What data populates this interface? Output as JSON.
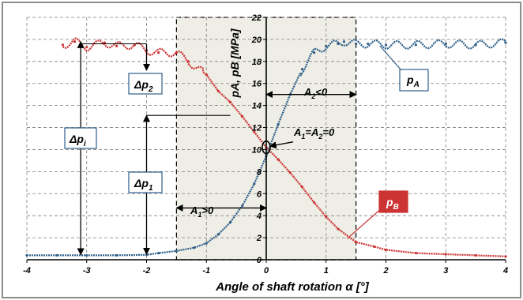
{
  "colors": {
    "pA": "#2e5f8a",
    "pB": "#cc3333",
    "shade": "#efeee6",
    "grid": "#7f7f7f",
    "border": "#7f7f7f"
  },
  "chart_data": {
    "type": "scatter",
    "title": "",
    "xlabel": "Angle of shaft rotation   α  [°]",
    "ylabel": "pA, pB  [MPa]",
    "xlim": [
      -4,
      4
    ],
    "ylim": [
      0,
      22
    ],
    "x_ticks": [
      -4,
      -3,
      -2,
      -1,
      0,
      1,
      2,
      3,
      4
    ],
    "y_ticks": [
      0,
      2,
      4,
      6,
      8,
      10,
      12,
      14,
      16,
      18,
      20,
      22
    ],
    "grid": true,
    "shaded_region_x": [
      -1.5,
      1.5
    ],
    "series": [
      {
        "name": "pA",
        "color": "#2e5f8a",
        "x": [
          -4.0,
          -3.5,
          -3.0,
          -2.5,
          -2.0,
          -1.8,
          -1.5,
          -1.2,
          -1.0,
          -0.8,
          -0.6,
          -0.4,
          -0.2,
          0.0,
          0.2,
          0.4,
          0.6,
          0.8,
          1.0,
          1.2,
          1.3,
          1.5,
          1.7,
          2.0,
          2.5,
          3.0,
          3.5,
          4.0
        ],
        "y": [
          0.4,
          0.4,
          0.4,
          0.4,
          0.45,
          0.6,
          0.8,
          1.1,
          1.5,
          2.3,
          3.4,
          4.9,
          6.9,
          9.4,
          12.3,
          15.0,
          17.3,
          18.8,
          19.4,
          19.6,
          19.8,
          19.6,
          19.6,
          19.5,
          19.5,
          19.6,
          19.5,
          19.7
        ]
      },
      {
        "name": "pB",
        "color": "#cc3333",
        "x": [
          -3.4,
          -3.2,
          -3.0,
          -2.7,
          -2.5,
          -2.2,
          -2.0,
          -1.8,
          -1.5,
          -1.3,
          -1.0,
          -0.8,
          -0.6,
          -0.4,
          -0.2,
          0.0,
          0.2,
          0.4,
          0.6,
          0.8,
          1.0,
          1.2,
          1.5,
          1.8,
          2.0,
          2.5,
          3.0,
          3.5,
          4.0
        ],
        "y": [
          19.5,
          19.8,
          19.3,
          19.7,
          19.4,
          19.5,
          19.0,
          18.8,
          18.8,
          18.0,
          16.8,
          15.3,
          14.3,
          13.0,
          11.6,
          10.2,
          9.1,
          7.9,
          6.6,
          5.2,
          3.9,
          2.8,
          1.6,
          1.2,
          0.9,
          0.6,
          0.5,
          0.4,
          0.3
        ]
      }
    ],
    "annotations": {
      "dpi": "Δp",
      "dpi_sub": "i",
      "dp1": "Δp",
      "dp1_sub": "1",
      "dp2": "Δp",
      "dp2_sub": "2",
      "a1": "A",
      "a1_sub": "1",
      "a1_rel": ">0",
      "a2": "A",
      "a2_sub": "2",
      "a2_rel": "<0",
      "eq_a": "A",
      "eq_sub1": "1",
      "eq_mid": "=A",
      "eq_sub2": "2",
      "eq_end": "=0",
      "pa_label": "p",
      "pa_sub": "A",
      "pb_label": "p",
      "pb_sub": "B"
    }
  }
}
